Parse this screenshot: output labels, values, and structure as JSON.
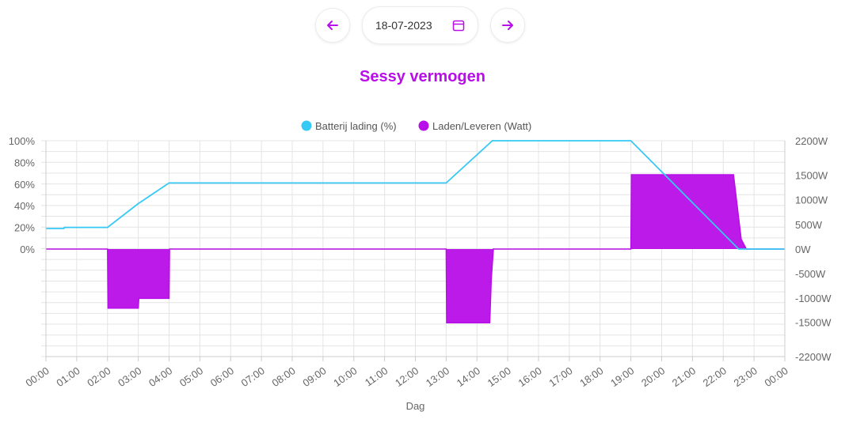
{
  "nav": {
    "date": "18-07-2023",
    "prev_icon": "arrow-left-icon",
    "next_icon": "arrow-right-icon",
    "calendar_icon": "calendar-icon",
    "accent": "#b80ee8"
  },
  "chart_title": "Sessy vermogen",
  "chart_data": {
    "type": "line",
    "title": "Sessy vermogen",
    "xlabel": "Dag",
    "x_ticks": [
      "00:00",
      "01:00",
      "02:00",
      "03:00",
      "04:00",
      "05:00",
      "06:00",
      "07:00",
      "08:00",
      "09:00",
      "10:00",
      "11:00",
      "12:00",
      "13:00",
      "14:00",
      "15:00",
      "16:00",
      "17:00",
      "18:00",
      "19:00",
      "20:00",
      "21:00",
      "22:00",
      "23:00",
      "00:00"
    ],
    "y_left_ticks": [
      "100%",
      "80%",
      "60%",
      "40%",
      "20%",
      "0%"
    ],
    "y_right_ticks": [
      "2200W",
      "1500W",
      "1000W",
      "500W",
      "0W",
      "-500W",
      "-1000W",
      "-1500W",
      "-2200W"
    ],
    "y_left_range": [
      0,
      100
    ],
    "y_right_range": [
      -2200,
      2200
    ],
    "grid": true,
    "legend_position": "top",
    "series": [
      {
        "name": "Batterij lading (%)",
        "type": "line",
        "axis": "left",
        "color": "#36c9f5",
        "points": [
          [
            "00:00",
            19
          ],
          [
            "00:35",
            19
          ],
          [
            "00:36",
            20
          ],
          [
            "02:00",
            20
          ],
          [
            "03:00",
            42
          ],
          [
            "04:00",
            61
          ],
          [
            "13:00",
            61
          ],
          [
            "14:30",
            100
          ],
          [
            "19:00",
            100
          ],
          [
            "22:30",
            0
          ],
          [
            "24:00",
            0
          ]
        ]
      },
      {
        "name": "Laden/Leveren (Watt)",
        "type": "area",
        "axis": "right",
        "color": "#b80ee8",
        "points": [
          [
            "00:00",
            0
          ],
          [
            "02:00",
            0
          ],
          [
            "02:01",
            -1210
          ],
          [
            "03:00",
            -1210
          ],
          [
            "03:01",
            -1010
          ],
          [
            "04:00",
            -1010
          ],
          [
            "04:01",
            0
          ],
          [
            "13:00",
            0
          ],
          [
            "13:01",
            -1510
          ],
          [
            "14:25",
            -1510
          ],
          [
            "14:28",
            -600
          ],
          [
            "14:32",
            0
          ],
          [
            "19:00",
            0
          ],
          [
            "19:01",
            1510
          ],
          [
            "22:20",
            1510
          ],
          [
            "22:35",
            200
          ],
          [
            "22:45",
            0
          ],
          [
            "24:00",
            0
          ]
        ]
      }
    ]
  }
}
